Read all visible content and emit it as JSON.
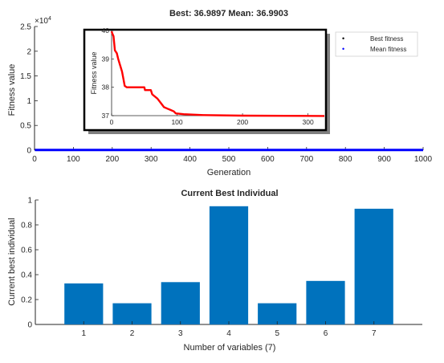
{
  "chart_data": [
    {
      "type": "scatter",
      "title": "Best: 36.9897 Mean: 36.9903",
      "xlabel": "Generation",
      "ylabel": "Fitness value",
      "xlim": [
        0,
        1000
      ],
      "ylim": [
        0,
        25000
      ],
      "y_exponent_label": "×10",
      "y_exponent_power": "4",
      "xticks": [
        "0",
        "100",
        "200",
        "300",
        "400",
        "500",
        "600",
        "700",
        "800",
        "900",
        "1000"
      ],
      "yticks": [
        "0",
        "0.5",
        "1",
        "1.5",
        "2",
        "2.5"
      ],
      "ytick_values": [
        0,
        5000,
        10000,
        15000,
        20000,
        25000
      ],
      "legend": {
        "position": "top-right",
        "items": [
          "Best fitness",
          "Mean fitness"
        ]
      },
      "colors": {
        "best": "#000000",
        "mean": "#0000ff"
      },
      "series": [
        {
          "name": "Best fitness",
          "x_range": [
            1,
            1000
          ],
          "y_approx": 37
        },
        {
          "name": "Mean fitness",
          "x_range": [
            1,
            1000
          ],
          "y_approx": 37
        }
      ]
    },
    {
      "type": "line",
      "inset": true,
      "ylabel": "Fitness value",
      "xlim": [
        0,
        325
      ],
      "ylim": [
        37,
        40
      ],
      "xticks": [
        "0",
        "100",
        "200",
        "300"
      ],
      "yticks": [
        "37",
        "38",
        "39",
        "40"
      ],
      "xtick_values": [
        0,
        100,
        200,
        300
      ],
      "ytick_values": [
        37,
        38,
        39,
        40
      ],
      "color": "#ff0000",
      "points": [
        [
          0,
          40.3
        ],
        [
          1,
          39.9
        ],
        [
          3,
          39.8
        ],
        [
          5,
          39.3
        ],
        [
          8,
          39.2
        ],
        [
          10,
          39.0
        ],
        [
          12,
          38.85
        ],
        [
          14,
          38.7
        ],
        [
          16,
          38.55
        ],
        [
          18,
          38.3
        ],
        [
          20,
          38.05
        ],
        [
          23,
          38.0
        ],
        [
          35,
          38.0
        ],
        [
          50,
          38.0
        ],
        [
          51,
          37.9
        ],
        [
          60,
          37.9
        ],
        [
          62,
          37.75
        ],
        [
          70,
          37.6
        ],
        [
          75,
          37.45
        ],
        [
          80,
          37.3
        ],
        [
          85,
          37.25
        ],
        [
          90,
          37.2
        ],
        [
          95,
          37.15
        ],
        [
          98,
          37.08
        ],
        [
          110,
          37.05
        ],
        [
          140,
          37.02
        ],
        [
          200,
          37.0
        ],
        [
          325,
          36.99
        ]
      ]
    },
    {
      "type": "bar",
      "title": "Current Best Individual",
      "xlabel": "Number of variables (7)",
      "ylabel": "Current best individual",
      "categories": [
        "1",
        "2",
        "3",
        "4",
        "5",
        "6",
        "7"
      ],
      "values": [
        0.33,
        0.17,
        0.34,
        0.95,
        0.17,
        0.35,
        0.93
      ],
      "ylim": [
        0,
        1
      ],
      "yticks": [
        "0",
        "0.2",
        "0.4",
        "0.6",
        "0.8",
        "1"
      ],
      "ytick_values": [
        0,
        0.2,
        0.4,
        0.6,
        0.8,
        1
      ],
      "color": "#0072bd"
    }
  ]
}
